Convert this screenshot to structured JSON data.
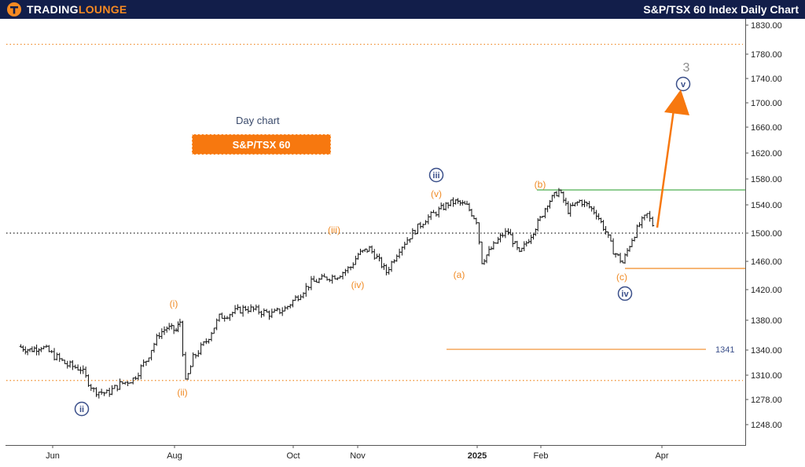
{
  "header": {
    "logo_primary": "TRADING",
    "logo_accent": "LOUNGE",
    "title": "S&P/TSX 60 Index Daily Chart",
    "colors": {
      "background": "#121e4a",
      "accent": "#f78a22",
      "text": "#ffffff"
    }
  },
  "annotation": {
    "day_chart": "Day chart",
    "index_badge": "S&P/TSX 60"
  },
  "chart_data": {
    "type": "candlestick",
    "y_ticks": [
      "1830.00",
      "1780.00",
      "1740.00",
      "1700.00",
      "1660.00",
      "1620.00",
      "1580.00",
      "1540.00",
      "1500.00",
      "1460.00",
      "1420.00",
      "1380.00",
      "1340.00",
      "1310.00",
      "1278.00",
      "1248.00"
    ],
    "x_ticks": [
      {
        "label": "Jun",
        "bold": false
      },
      {
        "label": "Aug",
        "bold": false
      },
      {
        "label": "Oct",
        "bold": false
      },
      {
        "label": "Nov",
        "bold": false
      },
      {
        "label": "2025",
        "bold": true
      },
      {
        "label": "Feb",
        "bold": false
      },
      {
        "label": "Apr",
        "bold": false
      }
    ],
    "price_path": [
      [
        "2024-05-08",
        1345
      ],
      [
        "2024-05-14",
        1340
      ],
      [
        "2024-05-20",
        1345
      ],
      [
        "2024-05-27",
        1333
      ],
      [
        "2024-06-03",
        1322
      ],
      [
        "2024-06-10",
        1318
      ],
      [
        "2024-06-17",
        1290
      ],
      [
        "2024-06-24",
        1286
      ],
      [
        "2024-07-01",
        1298
      ],
      [
        "2024-07-08",
        1305
      ],
      [
        "2024-07-15",
        1328
      ],
      [
        "2024-07-22",
        1362
      ],
      [
        "2024-07-26",
        1370
      ],
      [
        "2024-07-31",
        1366
      ],
      [
        "2024-08-02",
        1378
      ],
      [
        "2024-08-05",
        1300
      ],
      [
        "2024-08-09",
        1330
      ],
      [
        "2024-08-16",
        1352
      ],
      [
        "2024-08-23",
        1384
      ],
      [
        "2024-08-30",
        1390
      ],
      [
        "2024-09-06",
        1396
      ],
      [
        "2024-09-13",
        1392
      ],
      [
        "2024-09-20",
        1388
      ],
      [
        "2024-09-27",
        1395
      ],
      [
        "2024-10-04",
        1412
      ],
      [
        "2024-10-11",
        1430
      ],
      [
        "2024-10-18",
        1436
      ],
      [
        "2024-10-25",
        1440
      ],
      [
        "2024-11-01",
        1452
      ],
      [
        "2024-11-05",
        1470
      ],
      [
        "2024-11-11",
        1478
      ],
      [
        "2024-11-15",
        1465
      ],
      [
        "2024-11-20",
        1445
      ],
      [
        "2024-11-27",
        1478
      ],
      [
        "2024-12-04",
        1500
      ],
      [
        "2024-12-11",
        1520
      ],
      [
        "2024-12-18",
        1532
      ],
      [
        "2024-12-23",
        1542
      ],
      [
        "2024-12-27",
        1545
      ],
      [
        "2025-01-02",
        1538
      ],
      [
        "2025-01-07",
        1518
      ],
      [
        "2025-01-10",
        1460
      ],
      [
        "2025-01-15",
        1478
      ],
      [
        "2025-01-21",
        1498
      ],
      [
        "2025-01-24",
        1502
      ],
      [
        "2025-01-30",
        1470
      ],
      [
        "2025-02-04",
        1492
      ],
      [
        "2025-02-10",
        1520
      ],
      [
        "2025-02-14",
        1543
      ],
      [
        "2025-02-20",
        1562
      ],
      [
        "2025-02-25",
        1532
      ],
      [
        "2025-03-03",
        1546
      ],
      [
        "2025-03-07",
        1540
      ],
      [
        "2025-03-12",
        1528
      ],
      [
        "2025-03-17",
        1502
      ],
      [
        "2025-03-21",
        1475
      ],
      [
        "2025-03-26",
        1458
      ],
      [
        "2025-03-31",
        1492
      ],
      [
        "2025-04-04",
        1512
      ],
      [
        "2025-04-08",
        1526
      ],
      [
        "2025-04-11",
        1512
      ]
    ],
    "levels": [
      {
        "name": "upper-dotted-orange",
        "value": 1797,
        "style": "dotted",
        "color": "#f08a24"
      },
      {
        "name": "lower-dotted-orange",
        "value": 1303,
        "style": "dotted",
        "color": "#f08a24"
      },
      {
        "name": "mid-dotted-black",
        "value": 1500,
        "style": "dotted",
        "color": "#222222"
      },
      {
        "name": "green-resistance",
        "value": 1563,
        "style": "solid",
        "color": "#4caf50"
      },
      {
        "name": "orange-support",
        "value": 1450,
        "style": "solid",
        "color": "#f08a24"
      },
      {
        "name": "invalidation-level",
        "value": 1341,
        "style": "solid",
        "color": "#f08a24",
        "label": "1341"
      }
    ],
    "wave_labels": [
      {
        "text": "ii",
        "style": "circle-navy"
      },
      {
        "text": "i",
        "style": "orange-paren"
      },
      {
        "text": "ii",
        "style": "orange-paren"
      },
      {
        "text": "iii",
        "style": "orange-paren"
      },
      {
        "text": "iv",
        "style": "orange-paren"
      },
      {
        "text": "v",
        "style": "orange-paren"
      },
      {
        "text": "iii",
        "style": "circle-navy"
      },
      {
        "text": "a",
        "style": "orange-paren"
      },
      {
        "text": "b",
        "style": "orange-paren"
      },
      {
        "text": "c",
        "style": "orange-paren"
      },
      {
        "text": "iv",
        "style": "circle-navy"
      },
      {
        "text": "v",
        "style": "circle-navy"
      },
      {
        "text": "3",
        "style": "plain-gray"
      }
    ]
  }
}
